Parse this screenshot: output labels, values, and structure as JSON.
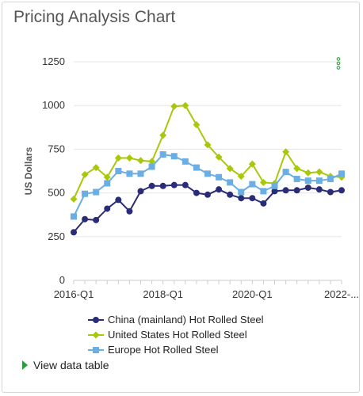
{
  "page": {
    "title": "Pricing Analysis Chart",
    "view_table_label": "View data table"
  },
  "colors": {
    "china": "#2b2c77",
    "us": "#a9c80c",
    "europe": "#6aaee3",
    "menu": "#2e9e3a"
  },
  "icons": {
    "menu": "vertical-dots-icon",
    "expand": "triangle-right-icon"
  },
  "chart_data": {
    "type": "line",
    "title": "Pricing Analysis Chart",
    "xlabel": "",
    "ylabel": "US Dollars",
    "ylim": [
      0,
      1250
    ],
    "yticks": [
      0,
      250,
      500,
      750,
      1000,
      1250
    ],
    "x_tick_labels": [
      "2016-Q1",
      "2018-Q1",
      "2020-Q1",
      "2022-..."
    ],
    "x_tick_indices": [
      0,
      8,
      16,
      24
    ],
    "grid": true,
    "legend_position": "bottom",
    "categories": [
      "2016-Q1",
      "2016-Q2",
      "2016-Q3",
      "2016-Q4",
      "2017-Q1",
      "2017-Q2",
      "2017-Q3",
      "2017-Q4",
      "2018-Q1",
      "2018-Q2",
      "2018-Q3",
      "2018-Q4",
      "2019-Q1",
      "2019-Q2",
      "2019-Q3",
      "2019-Q4",
      "2020-Q1",
      "2020-Q2",
      "2020-Q3",
      "2020-Q4",
      "2021-Q1",
      "2021-Q2",
      "2021-Q3",
      "2021-Q4",
      "2022-Q1"
    ],
    "series": [
      {
        "name": "China (mainland) Hot Rolled Steel",
        "key": "china",
        "marker": "circle",
        "values": [
          275,
          350,
          345,
          410,
          460,
          395,
          510,
          540,
          540,
          545,
          545,
          500,
          490,
          520,
          490,
          470,
          470,
          440,
          510,
          515,
          515,
          530,
          520,
          505,
          515
        ]
      },
      {
        "name": "United States Hot Rolled Steel",
        "key": "us",
        "marker": "diamond",
        "values": [
          465,
          605,
          645,
          590,
          700,
          700,
          685,
          680,
          830,
          995,
          1000,
          890,
          775,
          705,
          640,
          595,
          665,
          560,
          555,
          735,
          640,
          615,
          620,
          595,
          590
        ]
      },
      {
        "name": "Europe Hot Rolled Steel",
        "key": "europe",
        "marker": "square",
        "values": [
          365,
          495,
          505,
          555,
          625,
          610,
          610,
          650,
          720,
          710,
          680,
          645,
          610,
          590,
          560,
          505,
          550,
          510,
          540,
          620,
          580,
          570,
          570,
          580,
          610
        ]
      }
    ]
  }
}
